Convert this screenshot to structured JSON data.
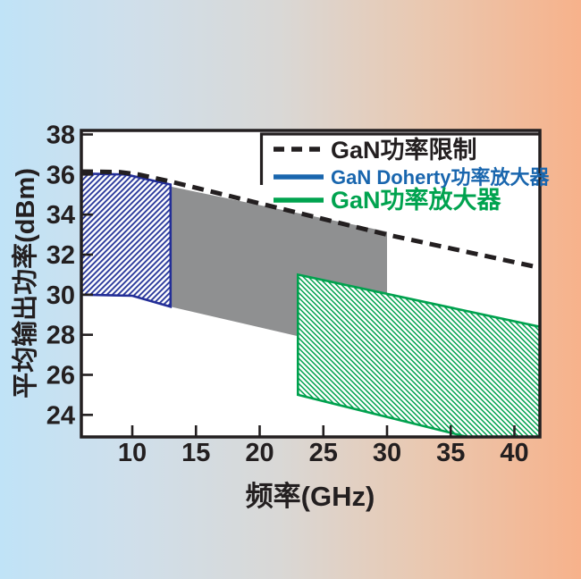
{
  "page": {
    "background_gradient": [
      "#c0e3f7",
      "#d9d8d6",
      "#f7b28b"
    ]
  },
  "chart_data": {
    "type": "area",
    "title": "",
    "xlabel": "频率(GHz)",
    "ylabel": "平均输出功率(dBm)",
    "xlim": [
      6,
      42
    ],
    "ylim": [
      22.9,
      38.2
    ],
    "xticks": [
      10,
      15,
      20,
      25,
      30,
      35,
      40
    ],
    "yticks": [
      24,
      26,
      28,
      30,
      32,
      34,
      36,
      38
    ],
    "grid": false,
    "frame_color": "#231f20",
    "plot_background": "#ffffff",
    "legend_position": "top-right-inside",
    "series": [
      {
        "name": "GaN功率限制",
        "kind": "dashed-line",
        "color": "#231f20",
        "points": [
          [
            6,
            36.15
          ],
          [
            9,
            36.12
          ],
          [
            10.5,
            36.0
          ],
          [
            13,
            35.65
          ],
          [
            30,
            33.0
          ],
          [
            42,
            31.35
          ]
        ]
      },
      {
        "name": "unlabeled-gray-band",
        "kind": "filled-region",
        "color": "#8f9091",
        "points": [
          [
            13,
            35.4
          ],
          [
            30,
            33.15
          ],
          [
            30,
            26.9
          ],
          [
            13,
            29.4
          ]
        ]
      },
      {
        "name": "GaN Doherty功率放大器",
        "kind": "hatched-region",
        "hatch": "/",
        "color": "#2b3a9c",
        "border_color": "#232e97",
        "points": [
          [
            6,
            36.05
          ],
          [
            9.5,
            36.0
          ],
          [
            13,
            35.5
          ],
          [
            13,
            29.4
          ],
          [
            10,
            29.95
          ],
          [
            6,
            30.0
          ]
        ]
      },
      {
        "name": "GaN功率放大器",
        "kind": "hatched-region",
        "hatch": "\\",
        "color": "#00a14e",
        "border_color": "#00a14e",
        "points": [
          [
            23,
            31.0
          ],
          [
            42,
            28.4
          ],
          [
            42,
            22.0
          ],
          [
            23,
            25.0
          ]
        ]
      }
    ],
    "legend": [
      {
        "label": "GaN功率限制",
        "style": "dashed",
        "color": "#231f20"
      },
      {
        "label": "GaN Doherty功率放大器",
        "style": "solid",
        "color": "#1966ae"
      },
      {
        "label": "GaN功率放大器",
        "style": "solid",
        "color": "#00a34f"
      }
    ]
  }
}
